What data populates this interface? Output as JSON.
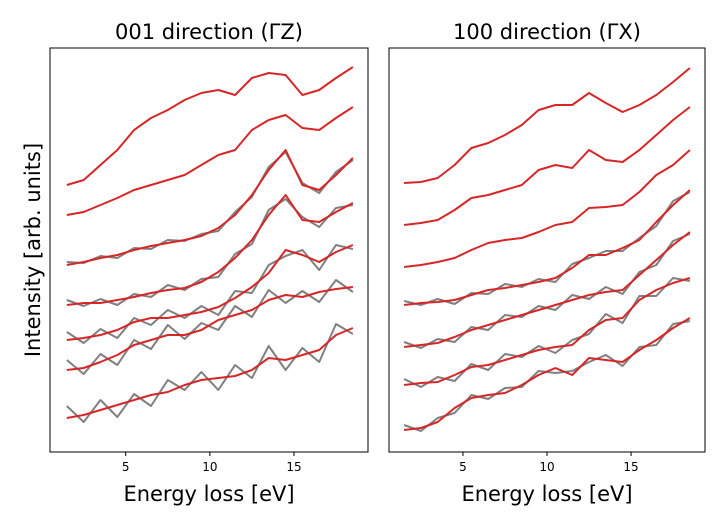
{
  "chart_data": [
    {
      "type": "line",
      "title": "001 direction (ΓZ)",
      "xlabel": "Energy loss [eV]",
      "ylabel": "Intensity [arb. units]",
      "xlim": [
        0.5,
        19.4
      ],
      "xticks": [
        5,
        10,
        15
      ],
      "ylim": [
        0,
        404
      ],
      "x": [
        1.5,
        2.5,
        3.5,
        4.5,
        5.5,
        6.5,
        7.5,
        8.5,
        9.5,
        10.5,
        11.5,
        12.5,
        13.5,
        14.5,
        15.5,
        16.5,
        17.5,
        18.5
      ],
      "series": [
        {
          "color": "#808080",
          "linewidth": 2,
          "values": [
            190,
            189,
            196,
            194,
            204,
            203,
            212,
            211,
            218,
            221,
            240,
            255,
            285,
            300,
            269,
            259,
            280,
            292
          ]
        },
        {
          "color": "#808080",
          "linewidth": 2,
          "values": [
            152,
            146,
            153,
            147,
            158,
            155,
            167,
            162,
            173,
            175,
            198,
            208,
            242,
            253,
            235,
            225,
            244,
            247
          ]
        },
        {
          "color": "#808080",
          "linewidth": 2,
          "values": [
            120,
            109,
            123,
            114,
            134,
            127,
            142,
            134,
            146,
            137,
            161,
            159,
            187,
            196,
            202,
            182,
            207,
            203
          ]
        },
        {
          "color": "#808080",
          "linewidth": 2,
          "values": [
            92,
            78,
            98,
            87,
            112,
            103,
            127,
            113,
            129,
            122,
            146,
            135,
            162,
            149,
            161,
            150,
            172,
            160
          ]
        },
        {
          "color": "#808080",
          "linewidth": 2,
          "values": [
            46,
            30,
            52,
            35,
            58,
            46,
            72,
            62,
            80,
            62,
            87,
            74,
            106,
            82,
            104,
            90,
            128,
            118
          ]
        },
        {
          "color": "#d62728",
          "linewidth": 2,
          "values": [
            267,
            272,
            287,
            302,
            322,
            334,
            342,
            352,
            359,
            362,
            357,
            374,
            379,
            377,
            357,
            362,
            374,
            385
          ]
        },
        {
          "color": "#d62728",
          "linewidth": 2,
          "values": [
            237,
            240,
            247,
            254,
            262,
            267,
            272,
            277,
            287,
            297,
            302,
            322,
            332,
            337,
            324,
            322,
            334,
            345
          ]
        },
        {
          "color": "#d62728",
          "linewidth": 2,
          "values": [
            187,
            190,
            194,
            197,
            202,
            206,
            209,
            212,
            216,
            224,
            237,
            257,
            282,
            302,
            267,
            262,
            277,
            294
          ]
        },
        {
          "color": "#d62728",
          "linewidth": 2,
          "values": [
            147,
            149,
            149,
            152,
            155,
            159,
            162,
            164,
            170,
            180,
            194,
            212,
            237,
            257,
            232,
            230,
            240,
            249
          ]
        },
        {
          "color": "#d62728",
          "linewidth": 2,
          "values": [
            112,
            114,
            117,
            122,
            130,
            134,
            134,
            137,
            140,
            145,
            154,
            165,
            179,
            202,
            197,
            190,
            200,
            207
          ]
        },
        {
          "color": "#d62728",
          "linewidth": 2,
          "values": [
            82,
            84,
            90,
            97,
            107,
            112,
            117,
            117,
            122,
            132,
            137,
            142,
            152,
            157,
            155,
            160,
            163,
            165
          ]
        },
        {
          "color": "#d62728",
          "linewidth": 2,
          "values": [
            34,
            37,
            42,
            47,
            52,
            57,
            60,
            67,
            72,
            74,
            76,
            82,
            94,
            92,
            97,
            102,
            117,
            124
          ]
        }
      ]
    },
    {
      "type": "line",
      "title": "100 direction (ΓX)",
      "xlabel": "Energy loss [eV]",
      "xlim": [
        0.6,
        19.4
      ],
      "xticks": [
        5,
        10,
        15
      ],
      "ylim": [
        0,
        404
      ],
      "x": [
        1.5,
        2.5,
        3.5,
        4.5,
        5.5,
        6.5,
        7.5,
        8.5,
        9.5,
        10.5,
        11.5,
        12.5,
        13.5,
        14.5,
        15.5,
        16.5,
        17.5,
        18.5
      ],
      "series": [
        {
          "color": "#808080",
          "linewidth": 2,
          "values": [
            151,
            147,
            153,
            148,
            159,
            158,
            168,
            165,
            173,
            170,
            188,
            194,
            201,
            201,
            214,
            226,
            251,
            260
          ]
        },
        {
          "color": "#808080",
          "linewidth": 2,
          "values": [
            110,
            104,
            113,
            110,
            125,
            122,
            137,
            135,
            146,
            142,
            157,
            153,
            165,
            158,
            180,
            187,
            211,
            218
          ]
        },
        {
          "color": "#808080",
          "linewidth": 2,
          "values": [
            73,
            65,
            75,
            71,
            88,
            82,
            98,
            95,
            106,
            99,
            112,
            118,
            138,
            129,
            156,
            156,
            174,
            171
          ]
        },
        {
          "color": "#808080",
          "linewidth": 2,
          "values": [
            27,
            21,
            34,
            39,
            57,
            53,
            64,
            65,
            81,
            79,
            81,
            90,
            97,
            86,
            105,
            107,
            128,
            131
          ]
        },
        {
          "color": "#d62728",
          "linewidth": 2,
          "values": [
            269,
            270,
            274,
            287,
            304,
            309,
            317,
            327,
            342,
            347,
            347,
            359,
            349,
            340,
            347,
            357,
            370,
            384
          ]
        },
        {
          "color": "#d62728",
          "linewidth": 2,
          "values": [
            227,
            229,
            232,
            242,
            254,
            257,
            262,
            267,
            282,
            287,
            284,
            302,
            292,
            290,
            302,
            317,
            332,
            345
          ]
        },
        {
          "color": "#d62728",
          "linewidth": 2,
          "values": [
            185,
            187,
            190,
            194,
            202,
            209,
            212,
            214,
            220,
            227,
            230,
            244,
            245,
            247,
            260,
            277,
            287,
            302
          ]
        },
        {
          "color": "#d62728",
          "linewidth": 2,
          "values": [
            147,
            149,
            150,
            152,
            157,
            162,
            164,
            167,
            170,
            174,
            184,
            197,
            197,
            204,
            212,
            230,
            247,
            262
          ]
        },
        {
          "color": "#d62728",
          "linewidth": 2,
          "values": [
            105,
            107,
            109,
            115,
            122,
            127,
            132,
            137,
            142,
            147,
            152,
            157,
            160,
            162,
            177,
            192,
            207,
            220
          ]
        },
        {
          "color": "#d62728",
          "linewidth": 2,
          "values": [
            67,
            69,
            70,
            77,
            85,
            87,
            92,
            97,
            102,
            105,
            107,
            122,
            132,
            134,
            152,
            162,
            169,
            174
          ]
        },
        {
          "color": "#d62728",
          "linewidth": 2,
          "values": [
            22,
            24,
            30,
            44,
            54,
            57,
            59,
            67,
            77,
            84,
            77,
            94,
            92,
            90,
            102,
            112,
            124,
            134
          ]
        }
      ]
    }
  ]
}
